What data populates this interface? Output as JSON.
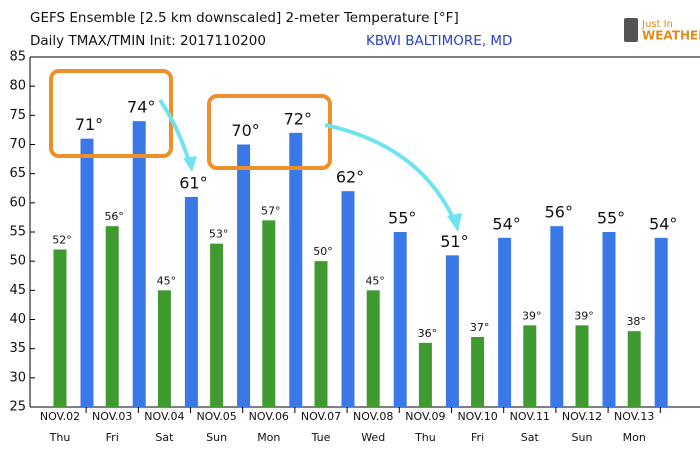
{
  "chart_data": {
    "type": "bar",
    "title": "GEFS Ensemble [2.5 km downscaled] 2-meter Temperature [°F]",
    "subtitle": "Daily TMAX/TMIN Init: 2017110200",
    "location": "KBWI BALTIMORE, MD",
    "logo": [
      "Just In",
      "WEATHER"
    ],
    "categories": [
      "NOV.02",
      "NOV.03",
      "NOV.04",
      "NOV.05",
      "NOV.06",
      "NOV.07",
      "NOV.08",
      "NOV.09",
      "NOV.10",
      "NOV.11",
      "NOV.12",
      "NOV.13"
    ],
    "weekdays": [
      "Thu",
      "Fri",
      "Sat",
      "Sun",
      "Mon",
      "Tue",
      "Wed",
      "Thu",
      "Fri",
      "Sat",
      "Sun",
      "Mon"
    ],
    "series": [
      {
        "name": "TMIN",
        "color": "#3f9a2f",
        "values": [
          52,
          56,
          45,
          53,
          57,
          50,
          45,
          36,
          37,
          39,
          39,
          38
        ],
        "value_labels": [
          "52°",
          "56°",
          "45°",
          "53°",
          "57°",
          "50°",
          "45°",
          "36°",
          "37°",
          "39°",
          "39°",
          "38°"
        ]
      },
      {
        "name": "TMAX",
        "color": "#3b78e7",
        "values": [
          71,
          74,
          61,
          70,
          72,
          62,
          55,
          51,
          54,
          56,
          55,
          54
        ],
        "value_labels": [
          "71°",
          "74°",
          "61°",
          "70°",
          "72°",
          "62°",
          "55°",
          "51°",
          "54°",
          "56°",
          "55°",
          "54°"
        ]
      }
    ],
    "ylim": [
      25,
      85
    ],
    "yticks": [
      25,
      30,
      35,
      40,
      45,
      50,
      55,
      60,
      65,
      70,
      75,
      80,
      85
    ]
  }
}
